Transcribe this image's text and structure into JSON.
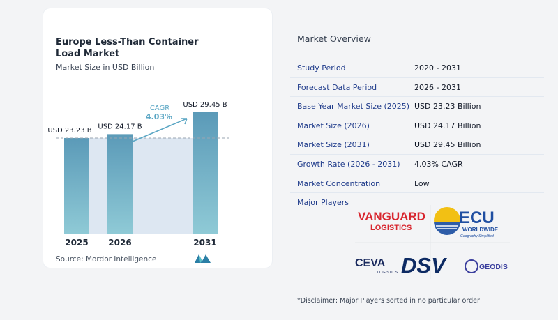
{
  "chart": {
    "title": "Europe Less-Than Container Load Market",
    "subtitle": "Market Size in USD Billion",
    "cagr_label": "CAGR",
    "cagr_value": "4.03%",
    "source": "Source:  Mordor Intelligence"
  },
  "chart_data": {
    "type": "bar",
    "categories": [
      "2025",
      "2026",
      "2031"
    ],
    "values": [
      23.23,
      24.17,
      29.45
    ],
    "value_labels": [
      "USD 23.23 B",
      "USD 24.17 B",
      "USD 29.45 B"
    ],
    "title": "Europe Less-Than Container Load Market",
    "ylabel": "Market Size in USD Billion",
    "ylim": [
      0,
      29.45
    ],
    "grid": false,
    "bar_color": "#5b9ab8",
    "bar_color_light": "#8fcad6",
    "band_color": "#dde7f2"
  },
  "overview": {
    "title": "Market Overview",
    "rows": [
      {
        "label": "Study Period",
        "value": "2020 - 2031"
      },
      {
        "label": "Forecast Data Period",
        "value": "2026 - 2031"
      },
      {
        "label": "Base Year Market Size (2025)",
        "value": "USD 23.23 Billion"
      },
      {
        "label": "Market Size (2026)",
        "value": "USD 24.17 Billion"
      },
      {
        "label": "Market Size (2031)",
        "value": "USD 29.45 Billion"
      },
      {
        "label": "Growth Rate (2026 - 2031)",
        "value": "4.03% CAGR"
      },
      {
        "label": "Market Concentration",
        "value": "Low"
      }
    ],
    "players_label": "Major Players",
    "players": {
      "vanguard_1": "VANGUARD",
      "vanguard_2": "LOGISTICS",
      "ecu_1": "ECU",
      "ecu_2": "WORLDWIDE",
      "ecu_3": "Geography Simplified",
      "ceva_1": "CEVA",
      "ceva_2": "LOGISTICS",
      "dsv": "DSV",
      "geodis": "GEODIS"
    },
    "disclaimer": "*Disclaimer: Major Players sorted in no particular order"
  }
}
